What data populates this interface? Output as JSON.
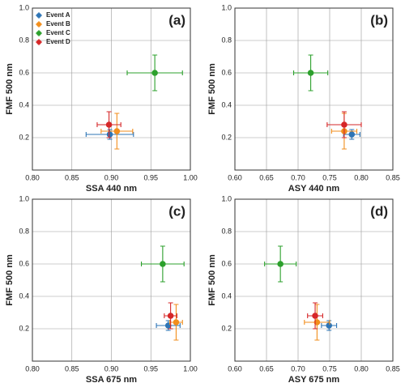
{
  "chart_data": [
    {
      "type": "scatter",
      "panel_label": "(a)",
      "xlabel": "SSA 440 nm",
      "ylabel": "FMF 500 nm",
      "xlim": [
        0.8,
        1.0
      ],
      "ylim": [
        0,
        1.0
      ],
      "xticks": [
        {
          "value": 0.8,
          "label": "0.80"
        },
        {
          "value": 0.85,
          "label": "0.85"
        },
        {
          "value": 0.9,
          "label": "0.90"
        },
        {
          "value": 0.95,
          "label": "0.95"
        },
        {
          "value": 1.0,
          "label": "1.00"
        }
      ],
      "yticks": [
        0.2,
        0.4,
        0.6,
        0.8,
        {
          "value": 1.0,
          "label": "1.0"
        }
      ],
      "grid": true,
      "legend": "upper left",
      "series": [
        {
          "name": "Event A",
          "color": "#2e75b6",
          "x": [
            0.898
          ],
          "values": [
            0.22
          ],
          "xerr": [
            0.03
          ],
          "yerr": [
            0.03
          ]
        },
        {
          "name": "Event B",
          "color": "#f28e1c",
          "x": [
            0.907
          ],
          "values": [
            0.24
          ],
          "xerr": [
            0.02
          ],
          "yerr": [
            0.11
          ]
        },
        {
          "name": "Event C",
          "color": "#2ca02c",
          "x": [
            0.955
          ],
          "values": [
            0.6
          ],
          "xerr": [
            0.035
          ],
          "yerr": [
            0.11
          ]
        },
        {
          "name": "Event D",
          "color": "#d62728",
          "x": [
            0.897
          ],
          "values": [
            0.28
          ],
          "xerr": [
            0.015
          ],
          "yerr": [
            0.08
          ]
        }
      ]
    },
    {
      "type": "scatter",
      "panel_label": "(b)",
      "xlabel": "ASY 440 nm",
      "ylabel": "FMF 500 nm",
      "xlim": [
        0.6,
        0.85
      ],
      "ylim": [
        0,
        1.0
      ],
      "xticks": [
        {
          "value": 0.6,
          "label": "0.60"
        },
        {
          "value": 0.65,
          "label": "0.65"
        },
        {
          "value": 0.7,
          "label": "0.70"
        },
        {
          "value": 0.75,
          "label": "0.75"
        },
        {
          "value": 0.8,
          "label": "0.80"
        },
        {
          "value": 0.85,
          "label": "0.85"
        }
      ],
      "yticks": [
        0.2,
        0.4,
        0.6,
        0.8,
        {
          "value": 1.0,
          "label": "1.0"
        }
      ],
      "grid": true,
      "series": [
        {
          "color": "#2e75b6",
          "x": [
            0.785
          ],
          "values": [
            0.22
          ],
          "xerr": [
            0.013
          ],
          "yerr": [
            0.03
          ]
        },
        {
          "color": "#f28e1c",
          "x": [
            0.773
          ],
          "values": [
            0.24
          ],
          "xerr": [
            0.02
          ],
          "yerr": [
            0.11
          ]
        },
        {
          "color": "#2ca02c",
          "x": [
            0.72
          ],
          "values": [
            0.6
          ],
          "xerr": [
            0.027
          ],
          "yerr": [
            0.11
          ]
        },
        {
          "color": "#d62728",
          "x": [
            0.773
          ],
          "values": [
            0.28
          ],
          "xerr": [
            0.027
          ],
          "yerr": [
            0.08
          ]
        }
      ]
    },
    {
      "type": "scatter",
      "panel_label": "(c)",
      "xlabel": "SSA 675 nm",
      "ylabel": "FMF 500 nm",
      "xlim": [
        0.8,
        1.0
      ],
      "ylim": [
        0,
        1.0
      ],
      "xticks": [
        {
          "value": 0.8,
          "label": "0.80"
        },
        {
          "value": 0.85,
          "label": "0.85"
        },
        {
          "value": 0.9,
          "label": "0.90"
        },
        {
          "value": 0.95,
          "label": "0.95"
        },
        {
          "value": 1.0,
          "label": "1.00"
        }
      ],
      "yticks": [
        0.2,
        0.4,
        0.6,
        0.8,
        {
          "value": 1.0,
          "label": "1.0"
        }
      ],
      "grid": true,
      "series": [
        {
          "color": "#2e75b6",
          "x": [
            0.972
          ],
          "values": [
            0.22
          ],
          "xerr": [
            0.015
          ],
          "yerr": [
            0.03
          ]
        },
        {
          "color": "#f28e1c",
          "x": [
            0.982
          ],
          "values": [
            0.24
          ],
          "xerr": [
            0.008
          ],
          "yerr": [
            0.11
          ]
        },
        {
          "color": "#2ca02c",
          "x": [
            0.965
          ],
          "values": [
            0.6
          ],
          "xerr": [
            0.027
          ],
          "yerr": [
            0.11
          ]
        },
        {
          "color": "#d62728",
          "x": [
            0.975
          ],
          "values": [
            0.28
          ],
          "xerr": [
            0.008
          ],
          "yerr": [
            0.08
          ]
        }
      ]
    },
    {
      "type": "scatter",
      "panel_label": "(d)",
      "xlabel": "ASY 675 nm",
      "ylabel": "FMF 500 nm",
      "xlim": [
        0.6,
        0.85
      ],
      "ylim": [
        0,
        1.0
      ],
      "xticks": [
        {
          "value": 0.6,
          "label": "0.60"
        },
        {
          "value": 0.65,
          "label": "0.65"
        },
        {
          "value": 0.7,
          "label": "0.70"
        },
        {
          "value": 0.75,
          "label": "0.75"
        },
        {
          "value": 0.8,
          "label": "0.80"
        },
        {
          "value": 0.85,
          "label": "0.85"
        }
      ],
      "yticks": [
        0.2,
        0.4,
        0.6,
        0.8,
        {
          "value": 1.0,
          "label": "1.0"
        }
      ],
      "grid": true,
      "series": [
        {
          "color": "#2e75b6",
          "x": [
            0.749
          ],
          "values": [
            0.22
          ],
          "xerr": [
            0.012
          ],
          "yerr": [
            0.03
          ]
        },
        {
          "color": "#f28e1c",
          "x": [
            0.73
          ],
          "values": [
            0.24
          ],
          "xerr": [
            0.02
          ],
          "yerr": [
            0.11
          ]
        },
        {
          "color": "#2ca02c",
          "x": [
            0.672
          ],
          "values": [
            0.6
          ],
          "xerr": [
            0.025
          ],
          "yerr": [
            0.11
          ]
        },
        {
          "color": "#d62728",
          "x": [
            0.727
          ],
          "values": [
            0.28
          ],
          "xerr": [
            0.012
          ],
          "yerr": [
            0.08
          ]
        }
      ]
    }
  ]
}
